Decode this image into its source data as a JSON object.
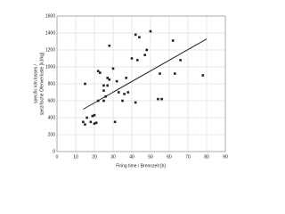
{
  "chart_data": {
    "type": "scatter",
    "x_label": "Firing time / Brennzeit [h]",
    "y_label": [
      "specific kiln losses /",
      "spezifische Ofenverluste [kJ/kg]"
    ],
    "xlim": [
      0,
      90
    ],
    "xticks": [
      0,
      10,
      20,
      30,
      40,
      50,
      60,
      70,
      80,
      90
    ],
    "ylim": [
      0,
      1600
    ],
    "yticks": [
      0,
      200,
      400,
      600,
      800,
      1000,
      1200,
      1400,
      1600
    ],
    "grid": true,
    "series": [
      {
        "color": "#222222",
        "x": [
          14,
          15,
          16,
          18,
          19,
          20,
          20,
          21,
          22,
          22,
          23,
          25,
          25,
          25,
          26,
          27,
          27,
          28,
          28,
          30,
          31,
          32,
          33,
          35,
          36,
          37,
          38,
          40,
          42,
          42,
          43,
          44,
          47,
          48,
          50,
          54,
          55,
          56,
          62,
          63,
          66,
          78,
          15
        ],
        "values": [
          350,
          320,
          400,
          350,
          420,
          430,
          330,
          340,
          600,
          950,
          930,
          600,
          720,
          780,
          650,
          870,
          780,
          850,
          1250,
          980,
          350,
          830,
          700,
          600,
          680,
          870,
          700,
          1100,
          1380,
          580,
          1080,
          1350,
          1140,
          1200,
          1420,
          620,
          920,
          620,
          1310,
          920,
          1080,
          900,
          800
        ]
      }
    ],
    "trendline": {
      "color": "#222222",
      "x": [
        14,
        80
      ],
      "values": [
        500,
        1330
      ]
    }
  }
}
